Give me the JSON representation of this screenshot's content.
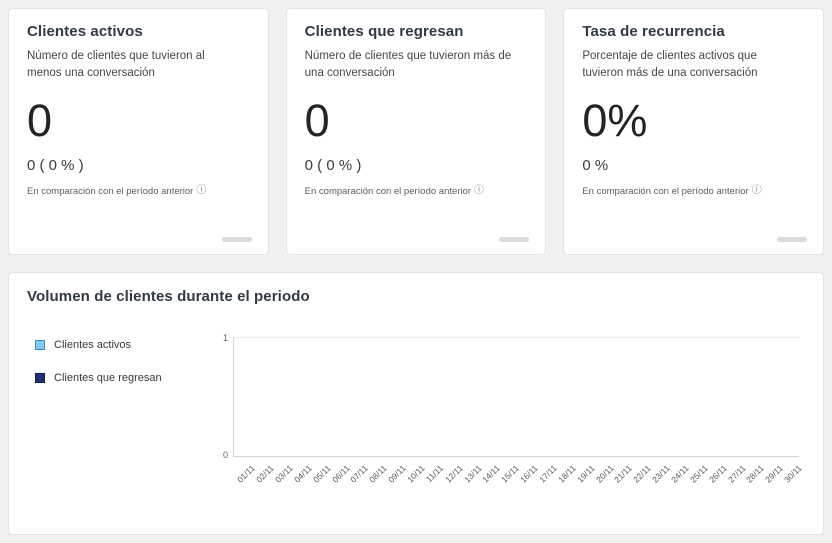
{
  "icons": {
    "info_glyph": "ⓘ"
  },
  "cards": [
    {
      "title": "Clientes activos",
      "description": "Número de clientes que tuvieron al menos una conversación",
      "value": "0",
      "comparison_value": "0 ( 0 % )",
      "comparison_label": "En comparación con el período anterior"
    },
    {
      "title": "Clientes que regresan",
      "description": "Número de clientes que tuvieron más de una conversación",
      "value": "0",
      "comparison_value": "0 ( 0 % )",
      "comparison_label": "En comparación con el período anterior"
    },
    {
      "title": "Tasa de recurrencia",
      "description": "Porcentaje de clientes activos que tuvieron más de una conversación",
      "value": "0%",
      "comparison_value": "0 %",
      "comparison_label": "En comparación con el período anterior"
    }
  ],
  "chart_card": {
    "title": "Volumen de clientes durante el periodo",
    "legend": [
      {
        "label": "Clientes activos",
        "fill": "#85c8ee",
        "border": "#3d8fc9"
      },
      {
        "label": "Clientes que regresan",
        "fill": "#232e76",
        "border": "#141d53"
      }
    ]
  },
  "chart_data": {
    "type": "bar",
    "title": "Volumen de clientes durante el periodo",
    "categories": [
      "01/11",
      "02/11",
      "03/11",
      "04/11",
      "05/11",
      "06/11",
      "07/11",
      "08/11",
      "09/11",
      "10/11",
      "11/11",
      "12/11",
      "13/11",
      "14/11",
      "15/11",
      "16/11",
      "17/11",
      "18/11",
      "19/11",
      "20/11",
      "21/11",
      "22/11",
      "23/11",
      "24/11",
      "25/11",
      "26/11",
      "27/11",
      "28/11",
      "29/11",
      "30/11"
    ],
    "series": [
      {
        "name": "Clientes activos",
        "values": [
          0,
          0,
          0,
          0,
          0,
          0,
          0,
          0,
          0,
          0,
          0,
          0,
          0,
          0,
          0,
          0,
          0,
          0,
          0,
          0,
          0,
          0,
          0,
          0,
          0,
          0,
          0,
          0,
          0,
          0
        ]
      },
      {
        "name": "Clientes que regresan",
        "values": [
          0,
          0,
          0,
          0,
          0,
          0,
          0,
          0,
          0,
          0,
          0,
          0,
          0,
          0,
          0,
          0,
          0,
          0,
          0,
          0,
          0,
          0,
          0,
          0,
          0,
          0,
          0,
          0,
          0,
          0
        ]
      }
    ],
    "ylim": [
      0,
      1
    ],
    "yticks": [
      "1",
      "0"
    ],
    "xlabel": "",
    "ylabel": "",
    "grid": true,
    "legend_position": "left"
  }
}
